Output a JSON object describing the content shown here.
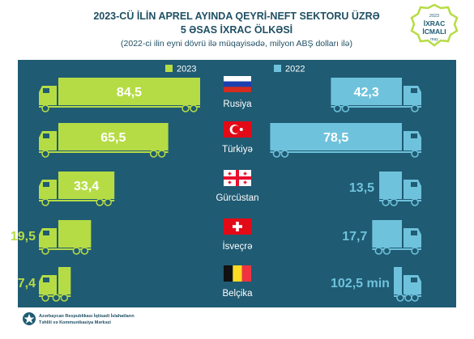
{
  "header": {
    "title_line1": "2023-CÜ İLİN APREL AYINDA QEYRİ-NEFT SEKTORU ÜZRƏ",
    "title_line2": "5 ƏSAS İXRAC ÖLKƏSİ",
    "subtitle": "(2022-ci ilin eyni dövrü ilə müqayisədə, milyon ABŞ dolları ilə)"
  },
  "badge": {
    "year": "2023",
    "line1": "İXRAC",
    "line2": "İCMALI",
    "month": "may"
  },
  "legend": {
    "left": "2023",
    "right": "2022"
  },
  "colors": {
    "background": "#1f5b73",
    "green": "#b6dc45",
    "blue": "#6fc2dc",
    "title_text": "#1f4f63",
    "footer_text": "#1f4f63"
  },
  "footer": {
    "line1": "Azərbaycan Respublikası İqtisadi İslahatların",
    "line2": "Təhlili və Kommunikasiya Mərkəzi",
    "logo_icon": "state-emblem-icon"
  },
  "chart_data": {
    "type": "bar",
    "categories": [
      "Rusiya",
      "Türkiyə",
      "Gürcüstan",
      "İsveçrə",
      "Belçika"
    ],
    "series": [
      {
        "name": "2023",
        "values": [
          84.5,
          65.5,
          33.4,
          19.5,
          7.4
        ]
      },
      {
        "name": "2022",
        "values": [
          42.3,
          78.5,
          13.5,
          17.7,
          0.1025
        ]
      }
    ],
    "value_labels_2023": [
      "84,5",
      "65,5",
      "33,4",
      "19,5",
      "7,4"
    ],
    "value_labels_2022": [
      "42,3",
      "78,5",
      "13,5",
      "17,7",
      "102,5 min"
    ],
    "flag_icons": [
      "flag-russia-icon",
      "flag-turkey-icon",
      "flag-georgia-icon",
      "flag-switzerland-icon",
      "flag-belgium-icon"
    ],
    "title": "2023-CÜ İLİN APREL AYINDA QEYRİ-NEFT SEKTORU ÜZRƏ 5 ƏSAS İXRAC ÖLKƏSİ",
    "legend_position": "top"
  }
}
